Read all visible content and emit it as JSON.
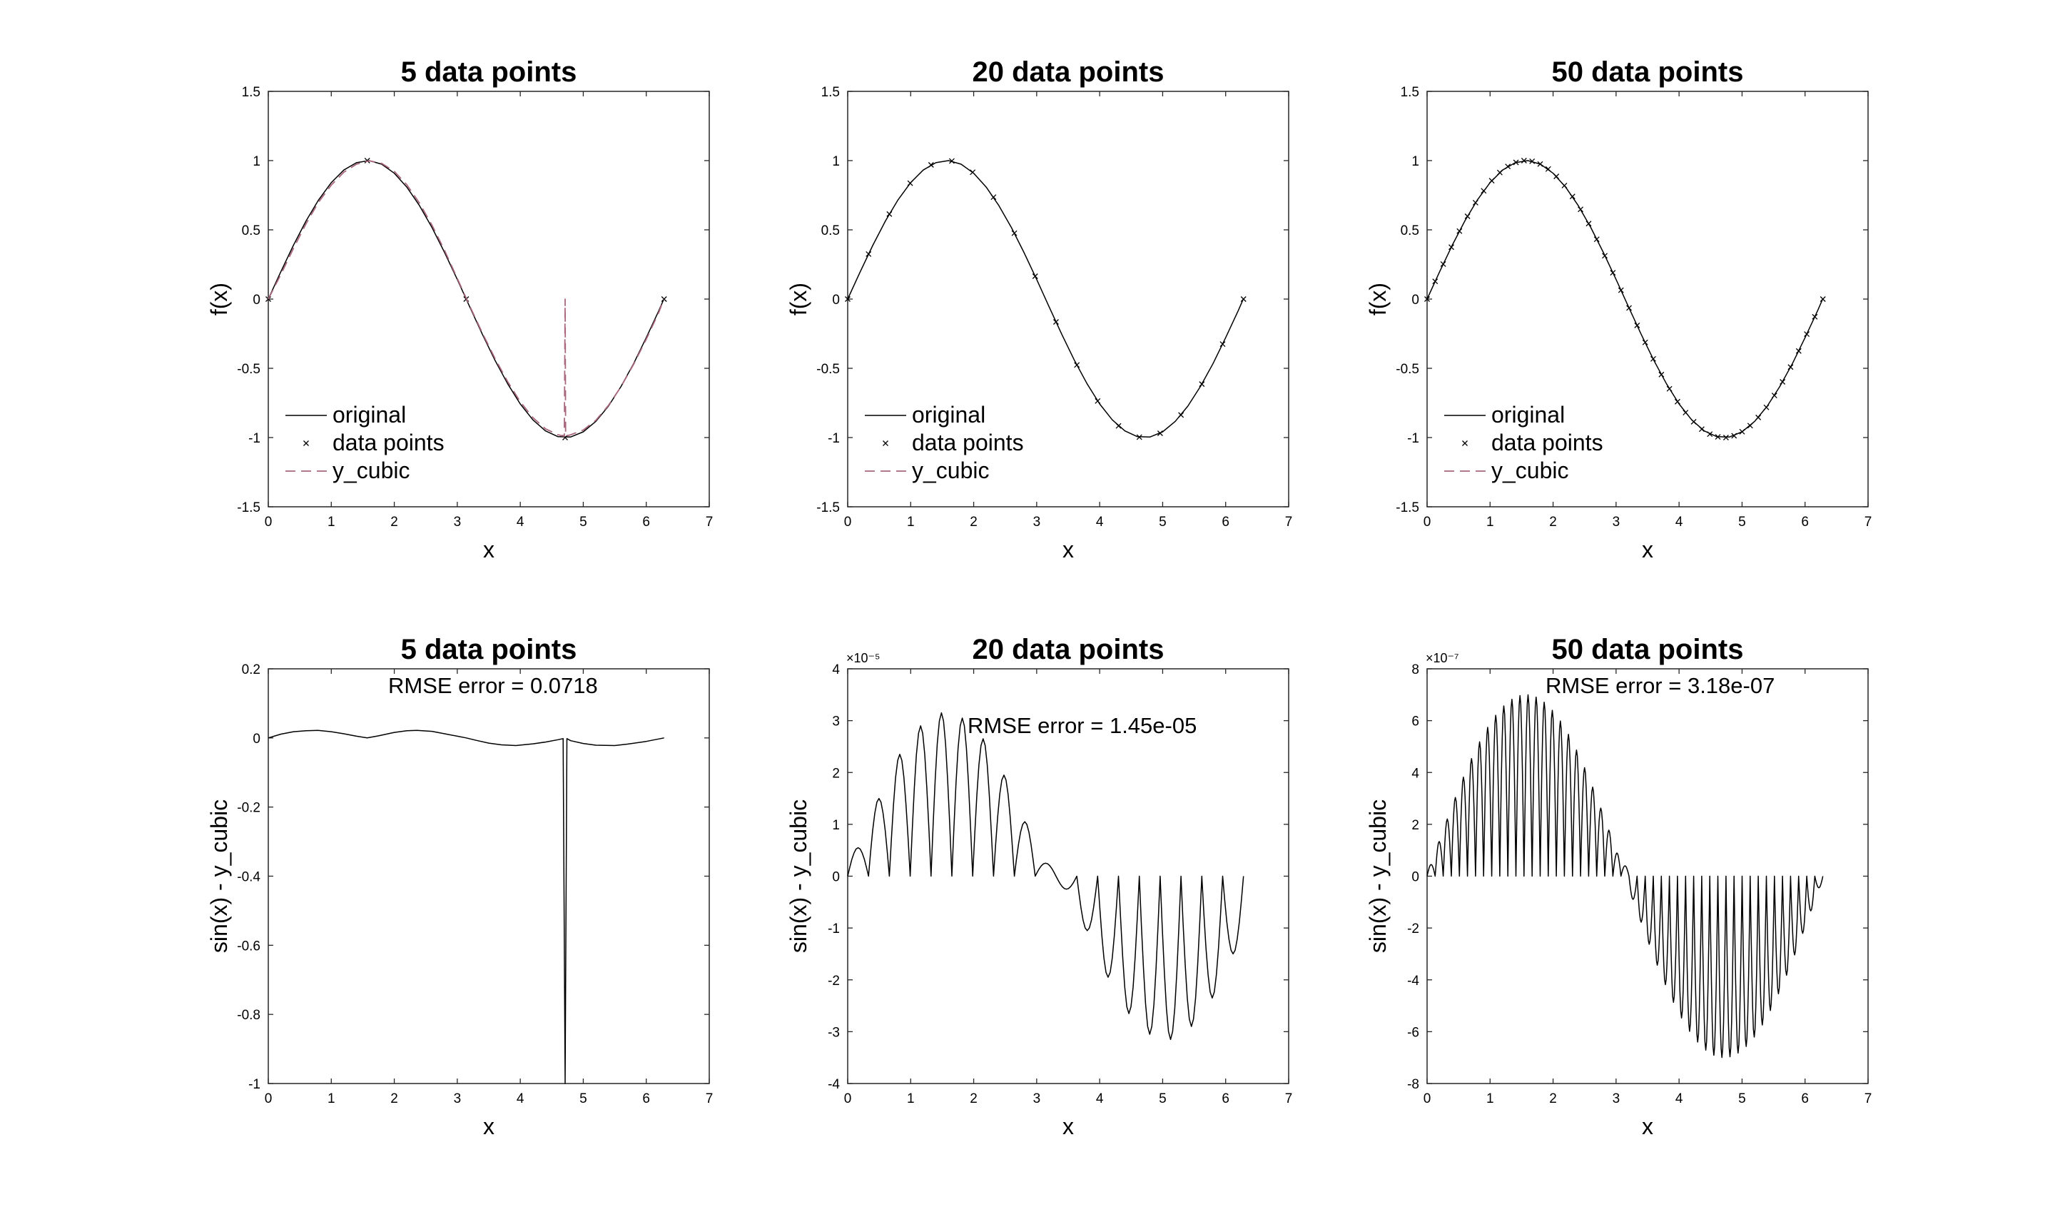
{
  "figure": {
    "background": "#ffffff",
    "line_color": "#000000",
    "cubic_color": "#a8677c"
  },
  "chart_data": [
    {
      "id": "p1",
      "type": "line",
      "title": "5 data points",
      "xlabel": "x",
      "ylabel": "f(x)",
      "xlim": [
        0,
        7
      ],
      "ylim": [
        -1.5,
        1.5
      ],
      "xticks": [
        "0",
        "1",
        "2",
        "3",
        "4",
        "5",
        "6",
        "7"
      ],
      "yticks": [
        "-1.5",
        "-1",
        "-0.5",
        "0",
        "0.5",
        "1",
        "1.5"
      ],
      "legend": [
        "original",
        "data points",
        "y_cubic"
      ],
      "legend_position": "bottom-left",
      "series": [
        {
          "name": "original",
          "style": "solid",
          "x": [
            0,
            0.2,
            0.4,
            0.6,
            0.8,
            1,
            1.2,
            1.4,
            1.6,
            1.8,
            2,
            2.2,
            2.4,
            2.6,
            2.8,
            3,
            3.2,
            3.4,
            3.6,
            3.8,
            4,
            4.2,
            4.4,
            4.6,
            4.8,
            5,
            5.2,
            5.4,
            5.6,
            5.8,
            6,
            6.2,
            6.28
          ],
          "y": [
            0,
            0.199,
            0.389,
            0.565,
            0.717,
            0.841,
            0.932,
            0.985,
            1.0,
            0.974,
            0.909,
            0.808,
            0.675,
            0.516,
            0.335,
            0.141,
            -0.058,
            -0.256,
            -0.443,
            -0.612,
            -0.757,
            -0.872,
            -0.952,
            -0.994,
            -0.996,
            -0.959,
            -0.883,
            -0.773,
            -0.631,
            -0.465,
            -0.279,
            -0.083,
            0
          ]
        },
        {
          "name": "data points",
          "style": "marker-x",
          "x": [
            0,
            1.571,
            3.142,
            4.712,
            6.283
          ],
          "y": [
            0,
            1,
            0,
            -1,
            0
          ]
        },
        {
          "name": "y_cubic",
          "style": "dashed",
          "x": [
            0,
            0.2,
            0.4,
            0.6,
            0.8,
            1,
            1.2,
            1.4,
            1.6,
            1.8,
            2,
            2.2,
            2.4,
            2.6,
            2.8,
            3,
            3.2,
            3.4,
            3.6,
            3.8,
            4,
            4.2,
            4.4,
            4.6,
            4.7,
            4.712,
            4.72,
            4.8,
            5,
            5.2,
            5.4,
            5.6,
            5.8,
            6,
            6.2,
            6.28
          ],
          "y": [
            0,
            0.179,
            0.366,
            0.545,
            0.701,
            0.823,
            0.916,
            0.974,
            0.999,
            0.98,
            0.922,
            0.825,
            0.693,
            0.533,
            0.35,
            0.149,
            -0.052,
            -0.247,
            -0.43,
            -0.597,
            -0.741,
            -0.856,
            -0.937,
            -0.98,
            -0.99,
            0,
            -0.99,
            -0.98,
            -0.946,
            -0.875,
            -0.768,
            -0.632,
            -0.47,
            -0.29,
            -0.095,
            0
          ]
        }
      ]
    },
    {
      "id": "p2",
      "type": "line",
      "title": "20 data points",
      "xlabel": "x",
      "ylabel": "f(x)",
      "xlim": [
        0,
        7
      ],
      "ylim": [
        -1.5,
        1.5
      ],
      "xticks": [
        "0",
        "1",
        "2",
        "3",
        "4",
        "5",
        "6",
        "7"
      ],
      "yticks": [
        "-1.5",
        "-1",
        "-0.5",
        "0",
        "0.5",
        "1",
        "1.5"
      ],
      "legend": [
        "original",
        "data points",
        "y_cubic"
      ],
      "legend_position": "bottom-left",
      "series": [
        {
          "name": "original",
          "style": "solid",
          "x": [
            0,
            0.2,
            0.4,
            0.6,
            0.8,
            1,
            1.2,
            1.4,
            1.6,
            1.8,
            2,
            2.2,
            2.4,
            2.6,
            2.8,
            3,
            3.2,
            3.4,
            3.6,
            3.8,
            4,
            4.2,
            4.4,
            4.6,
            4.8,
            5,
            5.2,
            5.4,
            5.6,
            5.8,
            6,
            6.2,
            6.28
          ],
          "y": [
            0,
            0.199,
            0.389,
            0.565,
            0.717,
            0.841,
            0.932,
            0.985,
            1.0,
            0.974,
            0.909,
            0.808,
            0.675,
            0.516,
            0.335,
            0.141,
            -0.058,
            -0.256,
            -0.443,
            -0.612,
            -0.757,
            -0.872,
            -0.952,
            -0.994,
            -0.996,
            -0.959,
            -0.883,
            -0.773,
            -0.631,
            -0.465,
            -0.279,
            -0.083,
            0
          ]
        },
        {
          "name": "data points",
          "style": "marker-x",
          "x": [
            0,
            0.331,
            0.661,
            0.992,
            1.323,
            1.653,
            1.984,
            2.315,
            2.646,
            2.976,
            3.307,
            3.638,
            3.968,
            4.299,
            4.63,
            4.96,
            5.291,
            5.622,
            5.952,
            6.283
          ],
          "y": [
            0,
            0.325,
            0.614,
            0.837,
            0.969,
            0.997,
            0.916,
            0.736,
            0.476,
            0.165,
            -0.165,
            -0.476,
            -0.736,
            -0.916,
            -0.997,
            -0.969,
            -0.837,
            -0.614,
            -0.325,
            0
          ]
        }
      ]
    },
    {
      "id": "p3",
      "type": "line",
      "title": "50 data points",
      "xlabel": "x",
      "ylabel": "f(x)",
      "xlim": [
        0,
        7
      ],
      "ylim": [
        -1.5,
        1.5
      ],
      "xticks": [
        "0",
        "1",
        "2",
        "3",
        "4",
        "5",
        "6",
        "7"
      ],
      "yticks": [
        "-1.5",
        "-1",
        "-0.5",
        "0",
        "0.5",
        "1",
        "1.5"
      ],
      "legend": [
        "original",
        "data points",
        "y_cubic"
      ],
      "legend_position": "bottom-left",
      "series": [
        {
          "name": "original",
          "style": "solid",
          "x": [
            0,
            0.2,
            0.4,
            0.6,
            0.8,
            1,
            1.2,
            1.4,
            1.6,
            1.8,
            2,
            2.2,
            2.4,
            2.6,
            2.8,
            3,
            3.2,
            3.4,
            3.6,
            3.8,
            4,
            4.2,
            4.4,
            4.6,
            4.8,
            5,
            5.2,
            5.4,
            5.6,
            5.8,
            6,
            6.2,
            6.28
          ],
          "y": [
            0,
            0.199,
            0.389,
            0.565,
            0.717,
            0.841,
            0.932,
            0.985,
            1.0,
            0.974,
            0.909,
            0.808,
            0.675,
            0.516,
            0.335,
            0.141,
            -0.058,
            -0.256,
            -0.443,
            -0.612,
            -0.757,
            -0.872,
            -0.952,
            -0.994,
            -0.996,
            -0.959,
            -0.883,
            -0.773,
            -0.631,
            -0.465,
            -0.279,
            -0.083,
            0
          ]
        },
        {
          "name": "data points",
          "style": "marker-x",
          "x": [
            0,
            0.128,
            0.256,
            0.385,
            0.513,
            0.641,
            0.769,
            0.898,
            1.026,
            1.154,
            1.282,
            1.411,
            1.539,
            1.667,
            1.795,
            1.923,
            2.052,
            2.18,
            2.308,
            2.436,
            2.565,
            2.693,
            2.821,
            2.949,
            3.078,
            3.206,
            3.334,
            3.462,
            3.59,
            3.719,
            3.847,
            3.975,
            4.103,
            4.232,
            4.36,
            4.488,
            4.616,
            4.745,
            4.873,
            5.001,
            5.129,
            5.257,
            5.386,
            5.514,
            5.642,
            5.77,
            5.899,
            6.027,
            6.155,
            6.283
          ],
          "y": [
            0,
            0.128,
            0.253,
            0.375,
            0.491,
            0.598,
            0.696,
            0.782,
            0.855,
            0.914,
            0.958,
            0.987,
            1.0,
            0.995,
            0.975,
            0.939,
            0.886,
            0.82,
            0.741,
            0.648,
            0.545,
            0.432,
            0.313,
            0.19,
            0.064,
            -0.064,
            -0.19,
            -0.313,
            -0.432,
            -0.545,
            -0.648,
            -0.741,
            -0.82,
            -0.886,
            -0.939,
            -0.975,
            -0.995,
            -1.0,
            -0.987,
            -0.958,
            -0.914,
            -0.855,
            -0.782,
            -0.696,
            -0.598,
            -0.491,
            -0.375,
            -0.253,
            -0.128,
            0
          ]
        }
      ]
    },
    {
      "id": "p4",
      "type": "line",
      "title": "5 data points",
      "xlabel": "x",
      "ylabel": "sin(x) - y_cubic",
      "xlim": [
        0,
        7
      ],
      "ylim": [
        -1,
        0.2
      ],
      "xticks": [
        "0",
        "1",
        "2",
        "3",
        "4",
        "5",
        "6",
        "7"
      ],
      "yticks": [
        "-1",
        "-0.8",
        "-0.6",
        "-0.4",
        "-0.2",
        "0",
        "0.2"
      ],
      "annotation": "RMSE error = 0.0718",
      "series": [
        {
          "name": "",
          "style": "solid",
          "x": [
            0,
            0.2,
            0.4,
            0.6,
            0.79,
            1.0,
            1.2,
            1.4,
            1.571,
            1.75,
            2.0,
            2.2,
            2.36,
            2.6,
            2.8,
            3.0,
            3.142,
            3.3,
            3.5,
            3.7,
            3.93,
            4.2,
            4.4,
            4.6,
            4.68,
            4.712,
            4.74,
            4.8,
            5.0,
            5.2,
            5.5,
            5.7,
            6.0,
            6.283
          ],
          "y": [
            0,
            0.011,
            0.018,
            0.021,
            0.022,
            0.018,
            0.012,
            0.005,
            0,
            0.006,
            0.016,
            0.021,
            0.022,
            0.019,
            0.012,
            0.005,
            0,
            -0.007,
            -0.015,
            -0.02,
            -0.022,
            -0.017,
            -0.012,
            -0.005,
            -0.002,
            -1.0,
            -0.002,
            -0.008,
            -0.016,
            -0.021,
            -0.022,
            -0.018,
            -0.01,
            0
          ]
        }
      ]
    },
    {
      "id": "p5",
      "type": "line",
      "title": "20 data points",
      "xlabel": "x",
      "ylabel": "sin(x) - y_cubic",
      "xlim": [
        0,
        7
      ],
      "ylim": [
        -4,
        4
      ],
      "y_exponent": "×10⁻⁵",
      "xticks": [
        "0",
        "1",
        "2",
        "3",
        "4",
        "5",
        "6",
        "7"
      ],
      "yticks": [
        "-4",
        "-3",
        "-2",
        "-1",
        "0",
        "1",
        "2",
        "3",
        "4"
      ],
      "annotation": "RMSE error = 1.45e-05",
      "series": [
        {
          "name": "",
          "style": "solid-oscillation",
          "segments": 19,
          "x_end": 6.283,
          "peaks": [
            0.55,
            1.5,
            2.35,
            2.9,
            3.15,
            3.05,
            2.65,
            1.95,
            1.05,
            0.25,
            -0.25,
            -1.05,
            -1.95,
            -2.65,
            -3.05,
            -3.15,
            -2.9,
            -2.35,
            -1.5,
            -0.55
          ]
        }
      ]
    },
    {
      "id": "p6",
      "type": "line",
      "title": "50 data points",
      "xlabel": "x",
      "ylabel": "sin(x) - y_cubic",
      "xlim": [
        0,
        7
      ],
      "ylim": [
        -8,
        8
      ],
      "y_exponent": "×10⁻⁷",
      "xticks": [
        "0",
        "1",
        "2",
        "3",
        "4",
        "5",
        "6",
        "7"
      ],
      "yticks": [
        "-8",
        "-6",
        "-4",
        "-2",
        "0",
        "2",
        "4",
        "6",
        "8"
      ],
      "annotation": "RMSE error = 3.18e-07",
      "series": [
        {
          "name": "",
          "style": "solid-oscillation",
          "segments": 49,
          "x_end": 6.283,
          "envelope_amplitude": 7.0
        }
      ]
    }
  ]
}
